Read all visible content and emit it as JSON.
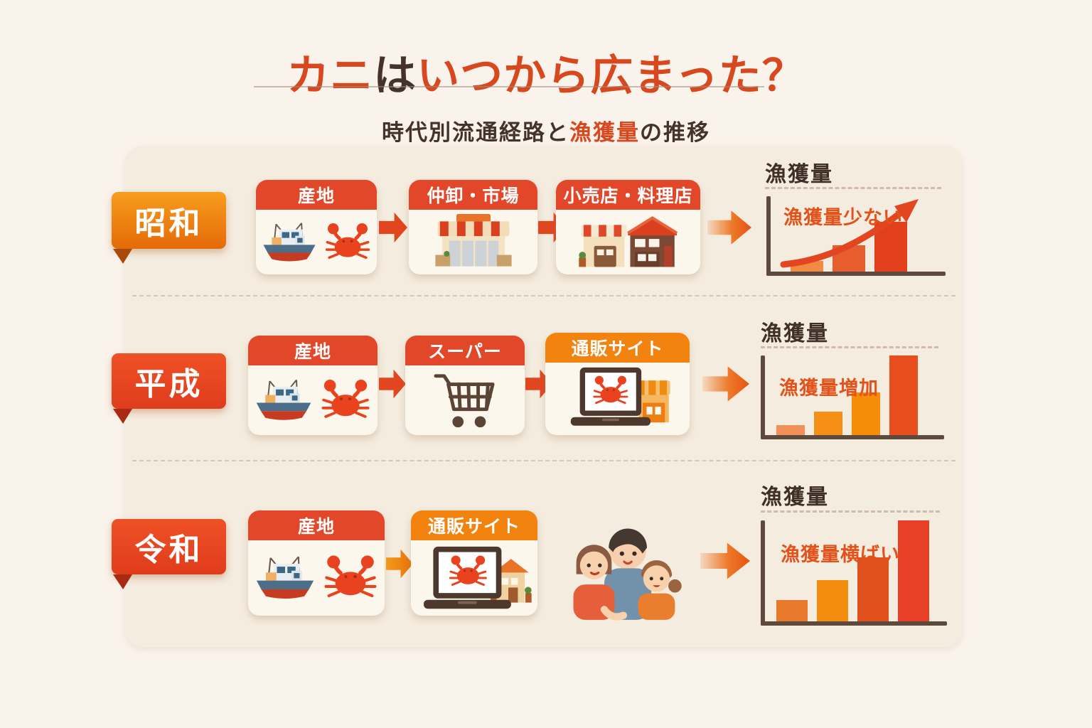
{
  "title": {
    "seg1": "カニ",
    "seg2": "は",
    "seg3": "いつから",
    "seg4": "広まった？"
  },
  "subtitle": {
    "pre": "時代別流通経路と",
    "highlight": "漁獲量",
    "post": "の推移"
  },
  "rows": [
    {
      "era": "昭和",
      "steps": [
        {
          "label": "産地",
          "icon": "boat-crab-icon",
          "header_color": "#e2472a"
        },
        {
          "label": "仲卸・市場",
          "icon": "market-icon",
          "header_color": "#e2472a"
        },
        {
          "label": "小売店・料理店",
          "icon": "shops-icon",
          "header_color": "#e2472a"
        }
      ]
    },
    {
      "era": "平成",
      "steps": [
        {
          "label": "産地",
          "icon": "boat-crab-icon",
          "header_color": "#e2472a"
        },
        {
          "label": "スーパー",
          "icon": "cart-icon",
          "header_color": "#e2472a"
        },
        {
          "label": "通販サイト",
          "icon": "laptop-shop-icon",
          "header_color": "#f2830f"
        }
      ]
    },
    {
      "era": "令和",
      "steps": [
        {
          "label": "産地",
          "icon": "boat-crab-icon",
          "header_color": "#e2472a"
        },
        {
          "label": "通販サイト",
          "icon": "laptop-house-icon",
          "header_color": "#f2830f"
        }
      ],
      "extra_icon": "family-icon"
    }
  ],
  "chart_data": [
    {
      "type": "bar",
      "era": "昭和",
      "title": "漁獲量",
      "annotation": "漁獲量少ない",
      "values": [
        15,
        37,
        70
      ],
      "values_unit": "relative height px (no numeric axis shown)",
      "bar_colors": [
        "#f18a43",
        "#e65e2d",
        "#e2401d"
      ],
      "trend_arrow": "up",
      "axes_labeled": false,
      "grid": false
    },
    {
      "type": "bar",
      "era": "平成",
      "title": "漁獲量",
      "annotation": "漁獲量増加",
      "values": [
        14,
        33,
        60,
        112
      ],
      "values_unit": "relative height px (no numeric axis shown)",
      "bar_colors": [
        "#f19159",
        "#f68f16",
        "#f78c07",
        "#e84e1e"
      ],
      "trend_arrow": "none",
      "axes_labeled": false,
      "grid": false
    },
    {
      "type": "bar",
      "era": "令和",
      "title": "漁獲量",
      "annotation": "漁獲量横ばい",
      "values": [
        30,
        58,
        90,
        142
      ],
      "values_unit": "relative height px (no numeric axis shown)",
      "bar_colors": [
        "#e87a2e",
        "#f28d0e",
        "#e0501c",
        "#e74027"
      ],
      "trend_arrow": "none",
      "axes_labeled": false,
      "grid": false
    }
  ],
  "colors": {
    "background": "#faf3eb",
    "panel": "#f4ecdf",
    "accent": "#d8481f",
    "dark_text": "#43332a",
    "header_red": "#e2472a",
    "header_orange": "#f2830f",
    "ribbon_showa": "#f0850f",
    "ribbon_heisei_reiwa": "#e84622",
    "axis": "#5d4a3c"
  }
}
